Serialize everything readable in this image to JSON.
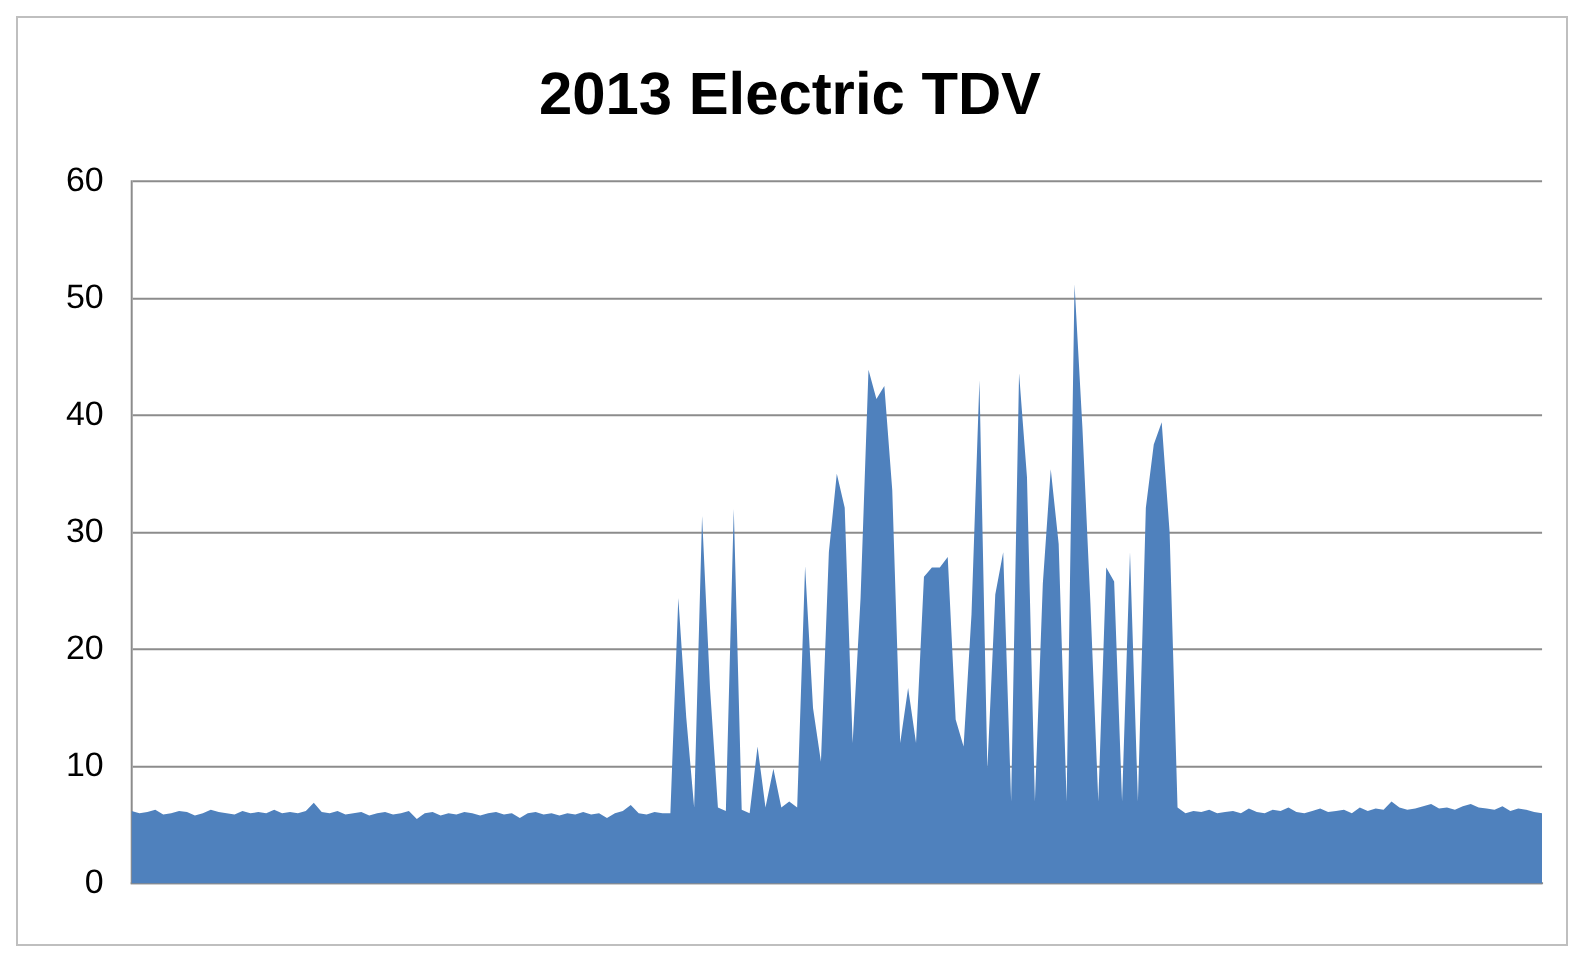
{
  "chart_data": {
    "type": "area",
    "title": "2013 Electric TDV",
    "ylim": [
      0,
      60
    ],
    "yticks": [
      0,
      10,
      20,
      30,
      40,
      50,
      60
    ],
    "grid": "y",
    "legend": false,
    "marker": "none",
    "categories": [
      null,
      null,
      null,
      null,
      null,
      null,
      null,
      null,
      null,
      null,
      null,
      null,
      null,
      null,
      null,
      null,
      null,
      null,
      null,
      null,
      null,
      null,
      null,
      null,
      null,
      null,
      null,
      null,
      null,
      null,
      null,
      null,
      null,
      null,
      null,
      null,
      null,
      null,
      null,
      null,
      null,
      null,
      null,
      null,
      null,
      null,
      null,
      null,
      null,
      null,
      null,
      null,
      null,
      null,
      null,
      null,
      null,
      null,
      null,
      null,
      null,
      null,
      null,
      null,
      null,
      null,
      null,
      null,
      null,
      null,
      null,
      null,
      null,
      null,
      null,
      null,
      null,
      null,
      null,
      null,
      null,
      null,
      null,
      null,
      null,
      null,
      null,
      null,
      null,
      null,
      null,
      null,
      null,
      null,
      null,
      null,
      null,
      null,
      null,
      null,
      null,
      null,
      null,
      null,
      null,
      null,
      null,
      null,
      null,
      null,
      null,
      null,
      null,
      null,
      null,
      null,
      null,
      null,
      null,
      null,
      null,
      null,
      null,
      null,
      null,
      null,
      null,
      null,
      null,
      null,
      null,
      null,
      null,
      null,
      null,
      null,
      null,
      null,
      null,
      null,
      null,
      null,
      null,
      null,
      null,
      null,
      null,
      null,
      null,
      null,
      null,
      null,
      null,
      null,
      null,
      null,
      null,
      null,
      null,
      null,
      null,
      null,
      null,
      null,
      null,
      null,
      null,
      null,
      null,
      null,
      null,
      null,
      null,
      null,
      null,
      null,
      null,
      null,
      null
    ],
    "series": [
      {
        "color": "#4f81bd",
        "values": [
          6.2,
          6.0,
          6.1,
          6.3,
          5.9,
          6.0,
          6.2,
          6.1,
          5.8,
          6.0,
          6.3,
          6.1,
          6.0,
          5.9,
          6.2,
          6.0,
          6.1,
          6.0,
          6.3,
          6.0,
          6.1,
          6.0,
          6.2,
          6.9,
          6.1,
          6.0,
          6.2,
          5.9,
          6.0,
          6.1,
          5.8,
          6.0,
          6.1,
          5.9,
          6.0,
          6.2,
          5.5,
          6.0,
          6.1,
          5.8,
          6.0,
          5.9,
          6.1,
          6.0,
          5.8,
          6.0,
          6.1,
          5.9,
          6.0,
          5.6,
          6.0,
          6.1,
          5.9,
          6.0,
          5.8,
          6.0,
          5.9,
          6.1,
          5.9,
          6.0,
          5.6,
          6.0,
          6.2,
          6.7,
          6.0,
          5.9,
          6.1,
          6.0,
          6,
          24.4,
          14.2,
          6.5,
          31.4,
          16.7,
          6.5,
          6.2,
          32,
          6.3,
          6,
          11.7,
          6.5,
          9.8,
          6.5,
          7,
          6.5,
          27.1,
          15,
          10.4,
          28.3,
          35,
          32.1,
          12,
          24.4,
          43.9,
          41.4,
          42.5,
          33.6,
          12,
          16.7,
          12,
          26.2,
          27,
          27,
          27.9,
          14,
          11.7,
          23,
          43,
          9.8,
          24.7,
          28.3,
          7,
          43.6,
          34.7,
          7,
          25.6,
          35.4,
          29,
          7,
          51.2,
          38.9,
          24,
          7,
          27,
          25.8,
          7,
          28.3,
          7,
          32.1,
          37.5,
          39.4,
          30,
          6.5,
          6.0,
          6.2,
          6.1,
          6.3,
          6.0,
          6.1,
          6.2,
          6.0,
          6.4,
          6.1,
          6.0,
          6.3,
          6.2,
          6.5,
          6.1,
          6.0,
          6.2,
          6.4,
          6.1,
          6.2,
          6.3,
          6.0,
          6.5,
          6.2,
          6.4,
          6.3,
          7.0,
          6.5,
          6.3,
          6.4,
          6.6,
          6.8,
          6.4,
          6.5,
          6.3,
          6.6,
          6.8,
          6.5,
          6.4,
          6.3,
          6.6,
          6.2,
          6.4,
          6.3,
          6.1,
          6.0
        ]
      }
    ]
  }
}
